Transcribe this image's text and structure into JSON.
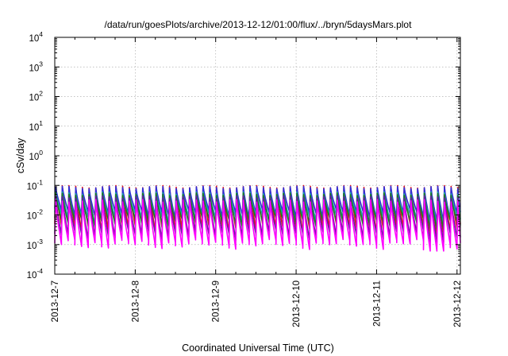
{
  "chart_data": {
    "type": "line",
    "title": "/data/run/goesPlots/archive/2013-12-12/01:00/flux/../bryn/5daysMars.plot",
    "xlabel": "Coordinated Universal Time (UTC)",
    "ylabel": "cSv/day",
    "y_scale": "log",
    "ylim": [
      0.0001,
      10000
    ],
    "y_ticks": [
      {
        "base": "10",
        "exp": "-4"
      },
      {
        "base": "10",
        "exp": "-3"
      },
      {
        "base": "10",
        "exp": "-2"
      },
      {
        "base": "10",
        "exp": "-1"
      },
      {
        "base": "10",
        "exp": "0"
      },
      {
        "base": "10",
        "exp": "1"
      },
      {
        "base": "10",
        "exp": "2"
      },
      {
        "base": "10",
        "exp": "3"
      },
      {
        "base": "10",
        "exp": "4"
      }
    ],
    "xlim": [
      "2013-12-07T00:00",
      "2013-12-12T01:00"
    ],
    "x_ticks": [
      "2013-12-7",
      "2013-12-8",
      "2013-12-9",
      "2013-12-10",
      "2013-12-11",
      "2013-12-12"
    ],
    "grid": true,
    "legend": "none",
    "sawtooth_period_hours": 2,
    "series": [
      {
        "color": "#e8141c",
        "peak": 0.09,
        "trough": 0.004
      },
      {
        "color": "#2f2fd6",
        "peak": 0.085,
        "trough": 0.011
      },
      {
        "color": "#1aa8a8",
        "peak": 0.055,
        "trough": 0.008
      },
      {
        "color": "#1d7a1d",
        "peak": 0.05,
        "trough": 0.006
      },
      {
        "color": "#6a1aa0",
        "peak": 0.04,
        "trough": 0.0022
      },
      {
        "color": "#ff00ff",
        "peak": 0.03,
        "trough": 0.0011
      }
    ]
  }
}
